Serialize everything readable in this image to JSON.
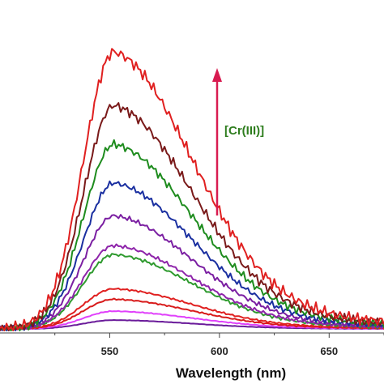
{
  "chart_data": {
    "type": "line",
    "title": "",
    "xlabel": "Wavelength (nm)",
    "ylabel": "",
    "xlim": [
      500,
      675
    ],
    "ylim": [
      0,
      10
    ],
    "xticks": [
      550,
      600,
      650
    ],
    "yticks_visible": false,
    "grid": false,
    "legend": "none",
    "annotation": {
      "text": "[Cr(III)]",
      "color": "#2e7d1e",
      "arrow_color": "#d81b50",
      "arrow_direction": "up"
    },
    "peak_wavelength": 552,
    "series": [
      {
        "color": "#e02020",
        "peak": 9.3
      },
      {
        "color": "#7a1a1a",
        "peak": 7.5
      },
      {
        "color": "#1e8c1e",
        "peak": 6.2
      },
      {
        "color": "#1a2fa0",
        "peak": 4.9
      },
      {
        "color": "#7b1fa2",
        "peak": 3.8
      },
      {
        "color": "#8e24aa",
        "peak": 2.8
      },
      {
        "color": "#2e9a2e",
        "peak": 2.5
      },
      {
        "color": "#e02020",
        "peak": 1.35
      },
      {
        "color": "#d81b1b",
        "peak": 1.0
      },
      {
        "color": "#e040fb",
        "peak": 0.6
      },
      {
        "color": "#6a1b9a",
        "peak": 0.3
      }
    ]
  }
}
